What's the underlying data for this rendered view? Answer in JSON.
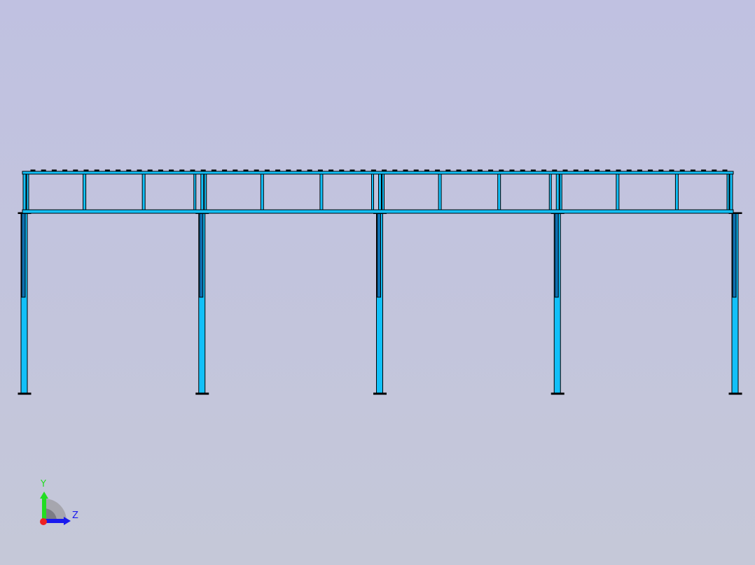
{
  "viewport": {
    "background_top": "#c0c1e1",
    "background_bottom": "#c5c8d8",
    "model": {
      "bays": 4,
      "intermediate_posts_per_bay": 2,
      "member_color": "#12c0f8",
      "shaded_member_color": "#0e6fb0",
      "outline_color": "#000000"
    }
  },
  "triad": {
    "y_label": "Y",
    "z_label": "Z",
    "y_color": "#22dd22",
    "z_color": "#1a1aee",
    "x_color": "#ee2222"
  }
}
